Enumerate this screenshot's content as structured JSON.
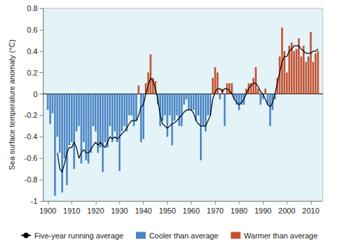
{
  "chart_data": {
    "type": "bar",
    "y_label": "Sea surface temperature anomaly (°C)",
    "x": [
      1900,
      1901,
      1902,
      1903,
      1904,
      1905,
      1906,
      1907,
      1908,
      1909,
      1910,
      1911,
      1912,
      1913,
      1914,
      1915,
      1916,
      1917,
      1918,
      1919,
      1920,
      1921,
      1922,
      1923,
      1924,
      1925,
      1926,
      1927,
      1928,
      1929,
      1930,
      1931,
      1932,
      1933,
      1934,
      1935,
      1936,
      1937,
      1938,
      1939,
      1940,
      1941,
      1942,
      1943,
      1944,
      1945,
      1946,
      1947,
      1948,
      1949,
      1950,
      1951,
      1952,
      1953,
      1954,
      1955,
      1956,
      1957,
      1958,
      1959,
      1960,
      1961,
      1962,
      1963,
      1964,
      1965,
      1966,
      1967,
      1968,
      1969,
      1970,
      1971,
      1972,
      1973,
      1974,
      1975,
      1976,
      1977,
      1978,
      1979,
      1980,
      1981,
      1982,
      1983,
      1984,
      1985,
      1986,
      1987,
      1988,
      1989,
      1990,
      1991,
      1992,
      1993,
      1994,
      1995,
      1996,
      1997,
      1998,
      1999,
      2000,
      2001,
      2002,
      2003,
      2004,
      2005,
      2006,
      2007,
      2008,
      2009,
      2010,
      2011,
      2012,
      2013
    ],
    "series": [
      {
        "name": "Five-year running average",
        "type": "line",
        "color": "#000000",
        "values": [
          null,
          null,
          null,
          null,
          -0.55,
          -0.7,
          -0.73,
          -0.65,
          -0.55,
          -0.5,
          -0.5,
          -0.45,
          -0.5,
          -0.6,
          -0.55,
          -0.52,
          -0.55,
          -0.55,
          -0.52,
          -0.48,
          -0.45,
          -0.48,
          -0.45,
          -0.48,
          -0.5,
          -0.45,
          -0.4,
          -0.42,
          -0.4,
          -0.42,
          -0.4,
          -0.37,
          -0.35,
          -0.32,
          -0.28,
          -0.25,
          -0.25,
          -0.25,
          -0.2,
          -0.12,
          -0.1,
          0.0,
          0.08,
          0.15,
          0.12,
          0.05,
          -0.05,
          -0.2,
          -0.28,
          -0.3,
          -0.32,
          -0.3,
          -0.28,
          -0.27,
          -0.25,
          -0.22,
          -0.2,
          -0.17,
          -0.15,
          -0.15,
          -0.15,
          -0.18,
          -0.25,
          -0.28,
          -0.3,
          -0.3,
          -0.3,
          -0.25,
          -0.2,
          -0.05,
          0.02,
          0.05,
          0.05,
          0.02,
          0.05,
          0.05,
          0.03,
          0.0,
          -0.05,
          -0.08,
          -0.1,
          -0.08,
          -0.05,
          0.0,
          0.05,
          0.08,
          0.1,
          0.1,
          0.07,
          0.02,
          0.0,
          -0.05,
          -0.1,
          -0.12,
          -0.08,
          0.0,
          0.1,
          0.2,
          0.3,
          0.35,
          0.35,
          0.4,
          0.42,
          0.45,
          0.45,
          0.45,
          0.42,
          0.4,
          0.38,
          0.38,
          0.38,
          0.4,
          0.4,
          0.42
        ]
      },
      {
        "name": "Cooler than average",
        "type": "bar",
        "color": "#4a84c4",
        "values": [
          -0.15,
          -0.28,
          -0.18,
          -0.95,
          -0.4,
          -0.55,
          -0.92,
          -0.6,
          -0.85,
          -0.48,
          -0.45,
          -0.7,
          -0.35,
          -0.3,
          -0.65,
          -0.45,
          -0.62,
          -0.65,
          -0.55,
          -0.3,
          -0.35,
          -0.55,
          -0.5,
          -0.73,
          -0.45,
          -0.5,
          -0.3,
          -0.45,
          -0.35,
          -0.45,
          -0.72,
          -0.35,
          -0.3,
          -0.35,
          -0.2,
          -0.2,
          -0.3,
          -0.25,
          null,
          -0.45,
          -0.42,
          null,
          null,
          null,
          null,
          null,
          -0.1,
          -0.3,
          -0.25,
          -0.2,
          -0.4,
          -0.2,
          -0.48,
          -0.25,
          -0.2,
          -0.3,
          -0.3,
          -0.1,
          -0.05,
          -0.15,
          -0.15,
          -0.15,
          -0.25,
          -0.2,
          -0.62,
          -0.3,
          -0.35,
          -0.2,
          -0.2,
          null,
          null,
          null,
          -0.05,
          null,
          -0.3,
          null,
          null,
          null,
          -0.05,
          -0.1,
          -0.15,
          -0.1,
          -0.1,
          null,
          null,
          null,
          null,
          null,
          null,
          -0.1,
          -0.05,
          null,
          -0.1,
          -0.3,
          -0.15,
          -0.05,
          null,
          null,
          null,
          null,
          null,
          null,
          null,
          null,
          null,
          null,
          null,
          null,
          null,
          null,
          null,
          null,
          null,
          null
        ]
      },
      {
        "name": "Warmer than average",
        "type": "bar",
        "color": "#c4502f",
        "values": [
          null,
          null,
          null,
          null,
          null,
          null,
          null,
          null,
          null,
          null,
          null,
          null,
          null,
          null,
          null,
          null,
          null,
          null,
          null,
          null,
          null,
          null,
          null,
          null,
          null,
          null,
          null,
          null,
          null,
          null,
          null,
          null,
          null,
          null,
          null,
          null,
          null,
          null,
          0.08,
          null,
          null,
          0.1,
          0.2,
          0.37,
          0.15,
          0.12,
          null,
          null,
          null,
          null,
          null,
          null,
          null,
          null,
          null,
          null,
          null,
          null,
          null,
          null,
          null,
          null,
          null,
          null,
          null,
          null,
          null,
          null,
          null,
          0.15,
          0.25,
          0.2,
          null,
          0.05,
          null,
          0.1,
          0.1,
          0.1,
          null,
          null,
          null,
          null,
          null,
          0.05,
          0.1,
          0.1,
          0.15,
          0.25,
          0.05,
          null,
          null,
          0.05,
          null,
          null,
          null,
          null,
          0.15,
          0.35,
          0.62,
          0.4,
          0.2,
          0.45,
          0.48,
          0.4,
          0.42,
          0.52,
          0.35,
          0.45,
          0.3,
          0.35,
          0.58,
          0.3,
          0.38,
          0.4
        ]
      }
    ],
    "xlim": [
      1898,
      2015
    ],
    "xticks": [
      1900,
      1910,
      1920,
      1930,
      1940,
      1950,
      1960,
      1970,
      1980,
      1990,
      2000,
      2010
    ],
    "ylim": [
      -1,
      0.8
    ],
    "yticks": [
      -1,
      -0.8,
      -0.6,
      -0.4,
      -0.2,
      0,
      0.2,
      0.4,
      0.6,
      0.8
    ],
    "grid": false,
    "legend": "bottom"
  }
}
